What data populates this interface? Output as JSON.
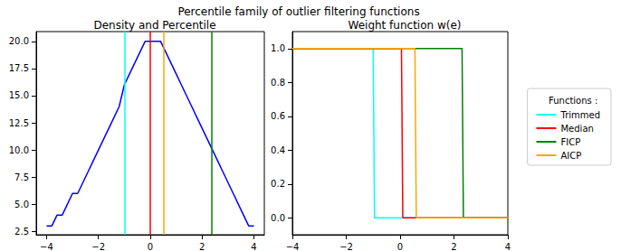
{
  "chart_data": {
    "title": "Percentile family of outlier filtering functions",
    "legend": "right",
    "legend_title": "Functions :",
    "charts": [
      {
        "type": "line",
        "title": "Density and Percentile",
        "x": [
          -4.0,
          -3.8,
          -3.6,
          -3.4,
          -3.2,
          -3.0,
          -2.8,
          -2.6,
          -2.4,
          -2.2,
          -2.0,
          -1.8,
          -1.6,
          -1.4,
          -1.2,
          -1.0,
          -0.8,
          -0.6,
          -0.4,
          -0.2,
          0.0,
          0.2,
          0.4,
          0.6,
          0.8,
          1.0,
          1.2,
          1.4,
          1.6,
          1.8,
          2.0,
          2.2,
          2.4,
          2.6,
          2.8,
          3.0,
          3.2,
          3.4,
          3.6,
          3.8,
          4.0
        ],
        "values": [
          3,
          3,
          4,
          4,
          5,
          6,
          6,
          7,
          8,
          9,
          10,
          11,
          12,
          13,
          14,
          16,
          17,
          18,
          19,
          20,
          20,
          20,
          20,
          19,
          18,
          17,
          16,
          15,
          14,
          13,
          12,
          11,
          10,
          9,
          8,
          7,
          6,
          5,
          4,
          3,
          3
        ],
        "color": "#0000ff",
        "vlines": [
          {
            "x": -1.0,
            "color": "#00ffff"
          },
          {
            "x": 0.0,
            "color": "#ff0000"
          },
          {
            "x": 2.35,
            "color": "#008000"
          },
          {
            "x": 0.5,
            "color": "#ffa500"
          }
        ],
        "xlim": [
          -4.4,
          4.4
        ],
        "xticks": [
          -4,
          -2,
          0,
          2,
          4
        ],
        "ylim": [
          2.2,
          20.9
        ],
        "yticks": [
          2.5,
          {
            "value": 5,
            "label": "5.0"
          },
          7.5,
          {
            "value": 10,
            "label": "10.0"
          },
          12.5,
          {
            "value": 15,
            "label": "15.0"
          },
          17.5,
          {
            "value": 20,
            "label": "20.0"
          }
        ]
      },
      {
        "type": "line",
        "title": "Weight function w(e)",
        "series": [
          {
            "name": "Trimmed",
            "color": "#00ffff",
            "x": [
              -4,
              -1.0,
              -0.95,
              4
            ],
            "values": [
              1,
              1,
              0,
              0
            ]
          },
          {
            "name": "Median",
            "color": "#ff0000",
            "x": [
              -4,
              0.05,
              0.1,
              4
            ],
            "values": [
              1,
              1,
              0,
              0
            ]
          },
          {
            "name": "FICP",
            "color": "#008000",
            "x": [
              -4,
              2.3,
              2.35,
              4
            ],
            "values": [
              1,
              1,
              0,
              0
            ]
          },
          {
            "name": "AICP",
            "color": "#ffa500",
            "x": [
              -4,
              0.55,
              0.6,
              4
            ],
            "values": [
              1,
              1,
              0,
              0
            ]
          }
        ],
        "xlim": [
          -4,
          4
        ],
        "xticks": [
          -4,
          -2,
          0,
          2,
          4
        ],
        "ylim": [
          -0.1,
          1.1
        ],
        "yticks": [
          {
            "value": 0,
            "label": "0.0"
          },
          0.2,
          0.4,
          0.6,
          0.8,
          {
            "value": 1,
            "label": "1.0"
          }
        ]
      }
    ]
  }
}
